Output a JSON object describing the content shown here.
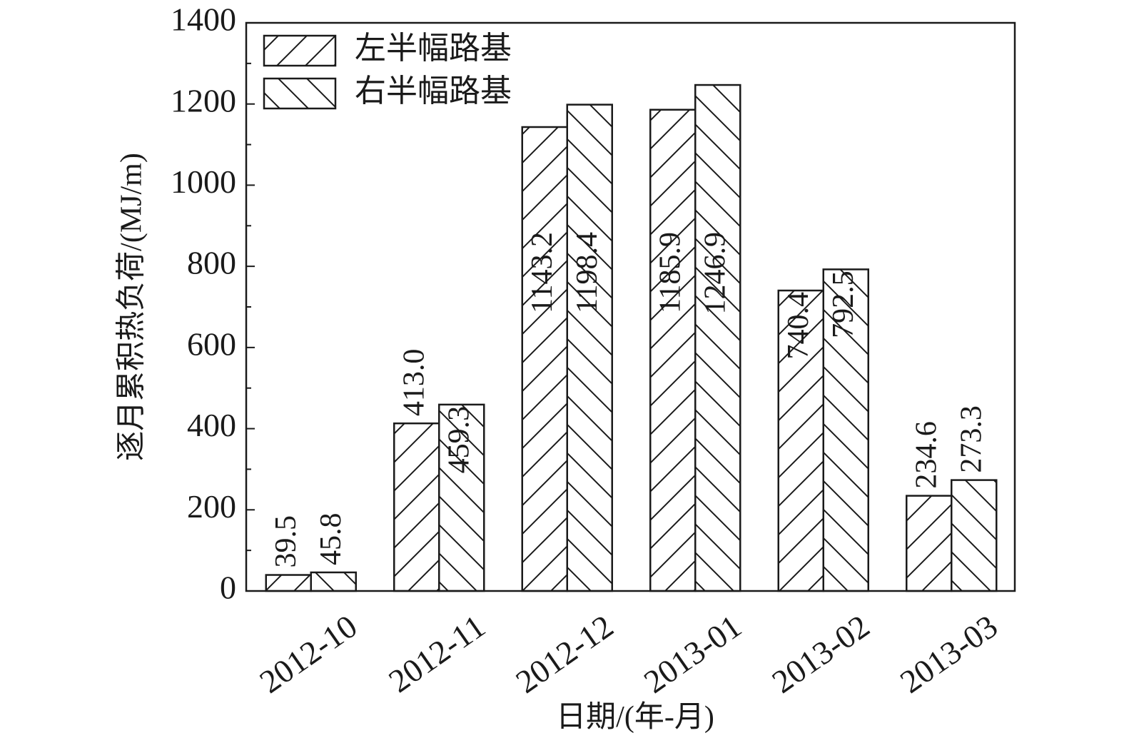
{
  "chart_data": {
    "type": "bar",
    "x_label": "日期/(年-月)",
    "y_label": "逐月累积热负荷/(MJ/m)",
    "categories": [
      "2012-10",
      "2012-11",
      "2012-12",
      "2013-01",
      "2013-02",
      "2013-03"
    ],
    "series": [
      {
        "name": "左半幅路基",
        "color": "#1a1a1a",
        "hatch": "/",
        "values": [
          39.5,
          413.0,
          1143.2,
          1185.9,
          740.4,
          234.6
        ],
        "value_labels": [
          "39.5",
          "413.0",
          "1143.2",
          "1185.9",
          "740.4",
          "234.6"
        ]
      },
      {
        "name": "右半幅路基",
        "color": "#1a1a1a",
        "hatch": "\\",
        "values": [
          45.8,
          459.3,
          1198.4,
          1246.9,
          792.5,
          273.3
        ],
        "value_labels": [
          "45.8",
          "459.3",
          "1198.4",
          "1246.9",
          "792.5",
          "273.3"
        ]
      }
    ],
    "ylim": [
      0,
      1400
    ],
    "yticks": [
      0,
      200,
      400,
      600,
      800,
      1000,
      1200,
      1400
    ],
    "legend": "top-left",
    "grid": false
  }
}
